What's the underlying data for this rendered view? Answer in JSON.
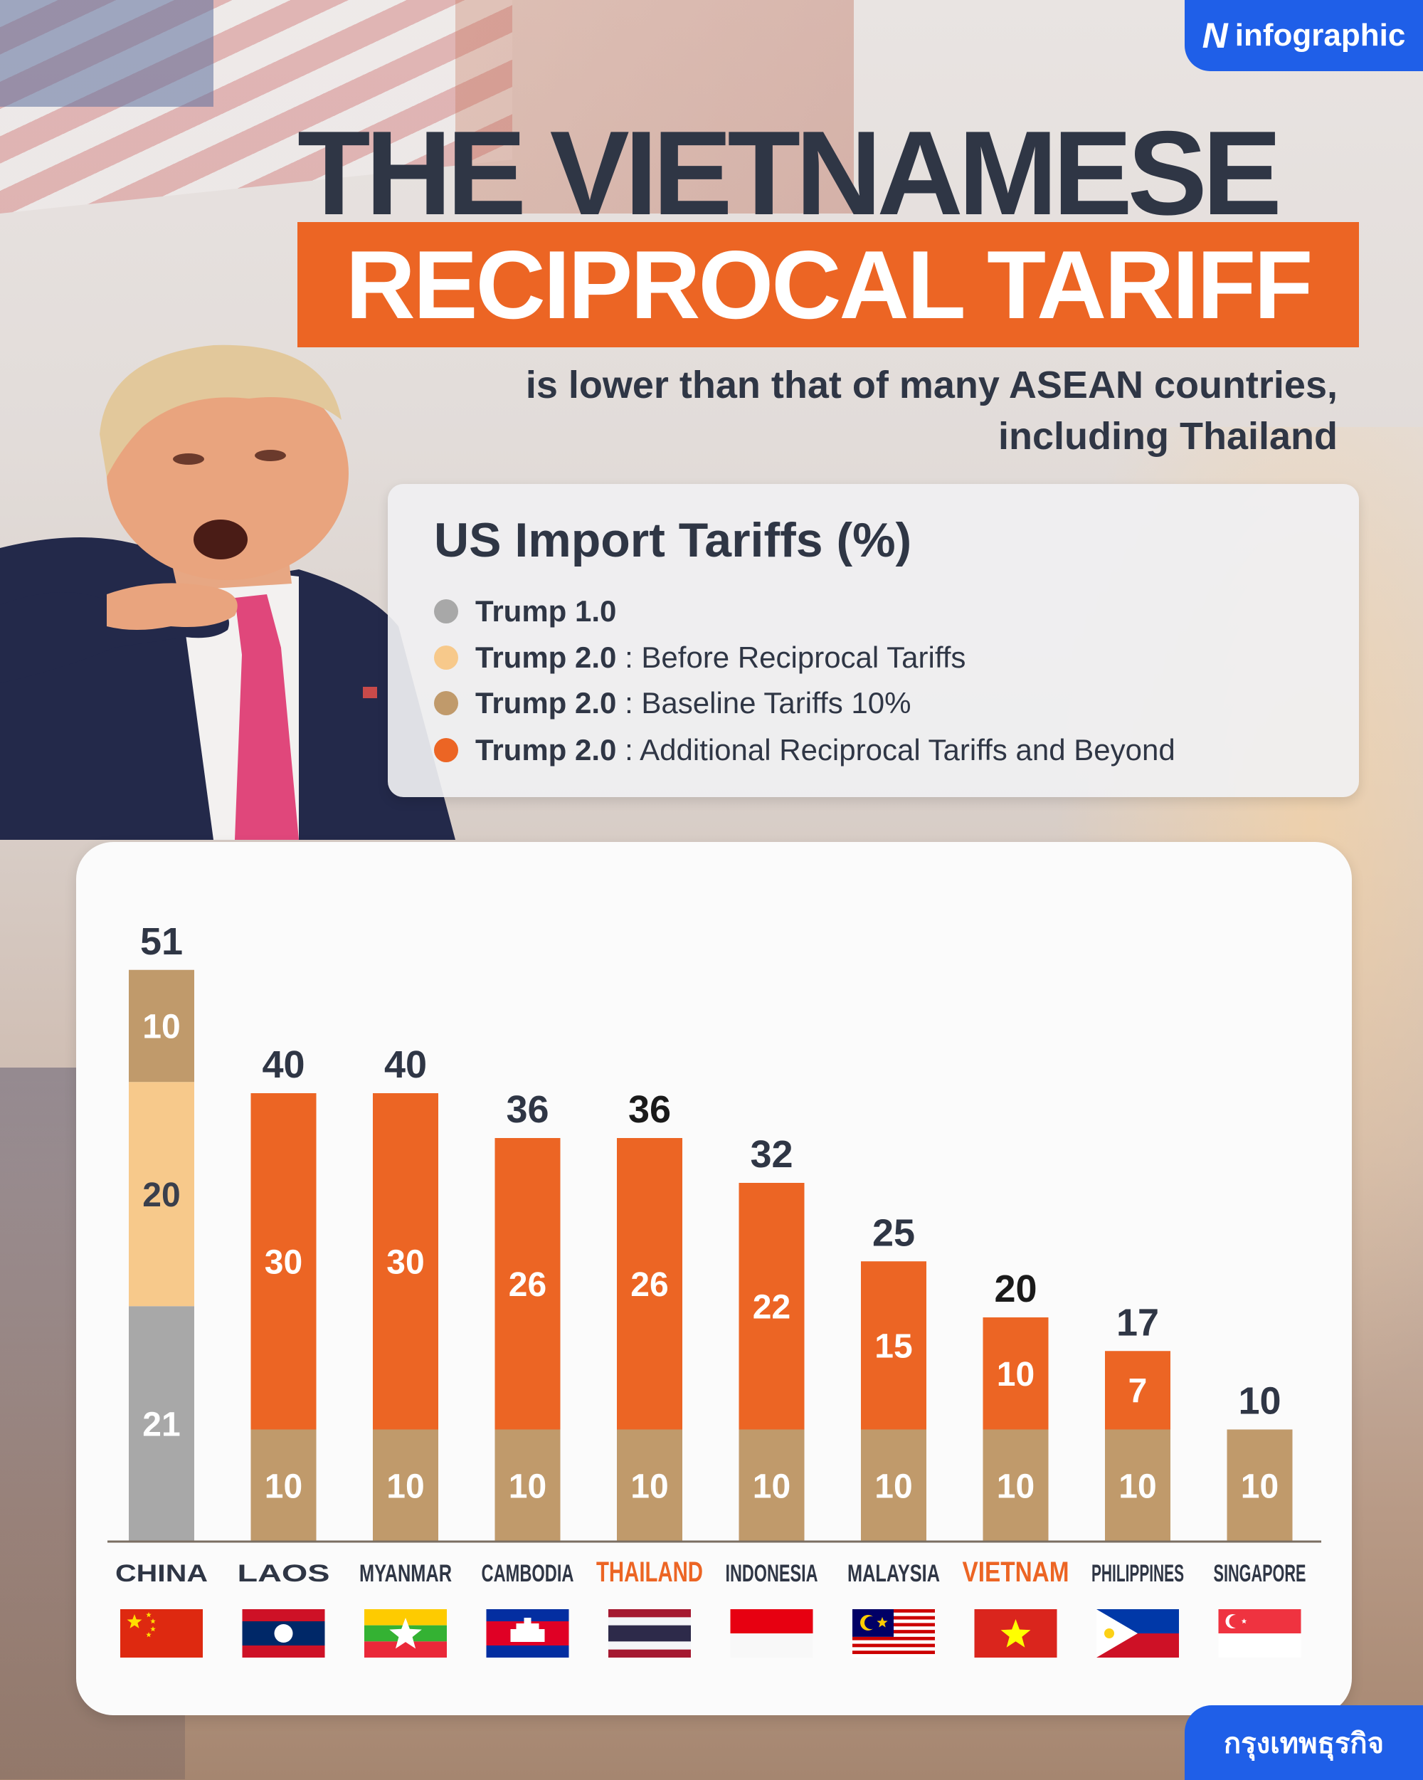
{
  "brand": {
    "name": "infographic"
  },
  "title": {
    "line1": "THE VIETNAMESE",
    "line2": "RECIPROCAL TARIFF"
  },
  "subtitle": {
    "line1": "is lower than that of many ASEAN countries,",
    "line2": "including Thailand"
  },
  "legend": {
    "title": "US Import Tariffs (%)",
    "items": [
      {
        "bold": "Trump 1.0",
        "rest": "",
        "color": "#a8a8a8"
      },
      {
        "bold": "Trump 2.0",
        "rest": " : Before Reciprocal Tariffs",
        "color": "#f7c98b"
      },
      {
        "bold": "Trump 2.0",
        "rest": " : Baseline Tariffs 10%",
        "color": "#c09a6b"
      },
      {
        "bold": "Trump 2.0",
        "rest": " : Additional Reciprocal Tariffs and Beyond",
        "color": "#ec6524"
      }
    ]
  },
  "chart_data": {
    "type": "bar",
    "stacked": true,
    "title": "US Import Tariffs (%)",
    "categories": [
      "CHINA",
      "LAOS",
      "MYANMAR",
      "CAMBODIA",
      "THAILAND",
      "INDONESIA",
      "MALAYSIA",
      "VIETNAM",
      "PHILIPPINES",
      "SINGAPORE"
    ],
    "highlight": [
      "THAILAND",
      "VIETNAM"
    ],
    "highlight_color": "#ec6524",
    "series": [
      {
        "name": "Trump 1.0",
        "color": "#a8a8a8",
        "values": [
          21,
          0,
          0,
          0,
          0,
          0,
          0,
          0,
          0,
          0
        ]
      },
      {
        "name": "Trump 2.0 : Before Reciprocal Tariffs",
        "color": "#f7c98b",
        "values": [
          20,
          0,
          0,
          0,
          0,
          0,
          0,
          0,
          0,
          0
        ]
      },
      {
        "name": "Trump 2.0 : Baseline Tariffs 10%",
        "color": "#c09a6b",
        "values": [
          10,
          10,
          10,
          10,
          10,
          10,
          10,
          10,
          10,
          10
        ]
      },
      {
        "name": "Trump 2.0 : Additional Reciprocal Tariffs and Beyond",
        "color": "#ec6524",
        "values": [
          0,
          30,
          30,
          26,
          26,
          22,
          15,
          10,
          7,
          0
        ]
      }
    ],
    "stack_order_bottom_to_top": {
      "CHINA": [
        "Trump 1.0",
        "Trump 2.0 : Before Reciprocal Tariffs",
        "Trump 2.0 : Baseline Tariffs 10%"
      ],
      "OTHERS": [
        "Trump 2.0 : Baseline Tariffs 10%",
        "Trump 2.0 : Additional Reciprocal Tariffs and Beyond"
      ]
    },
    "totals": [
      51,
      40,
      40,
      36,
      36,
      32,
      25,
      20,
      17,
      10
    ],
    "ylim": [
      0,
      51
    ],
    "grid": false,
    "legend_position": "top-right"
  },
  "flags": [
    "china-flag",
    "laos-flag",
    "myanmar-flag",
    "cambodia-flag",
    "thailand-flag",
    "indonesia-flag",
    "malaysia-flag",
    "vietnam-flag",
    "philippines-flag",
    "singapore-flag"
  ],
  "footer": {
    "publisher": "กรุงเทพธุรกิจ"
  }
}
